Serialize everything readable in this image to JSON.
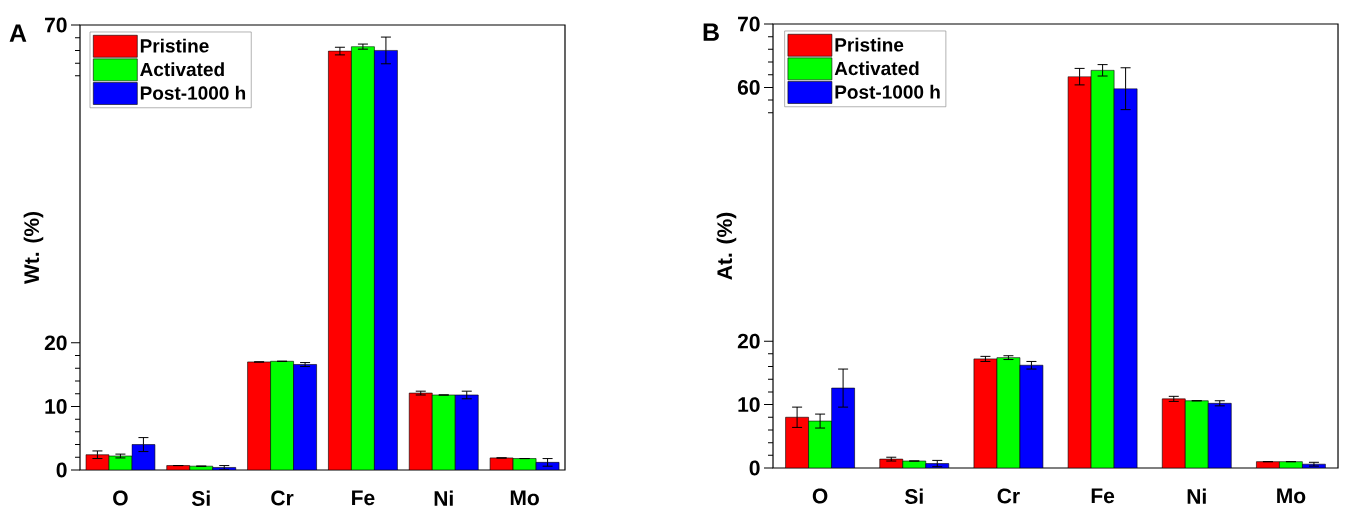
{
  "chart_data": [
    {
      "type": "bar",
      "title": "A",
      "ylabel": "Wt. (%)",
      "categories": [
        "O",
        "Si",
        "Cr",
        "Fe",
        "Ni",
        "Mo"
      ],
      "series": [
        {
          "name": "Pristine",
          "color": "#ff0000",
          "values": [
            2.4,
            0.7,
            17.0,
            65.9,
            12.1,
            1.9
          ],
          "errors": [
            0.6,
            null,
            null,
            0.6,
            0.3,
            null
          ]
        },
        {
          "name": "Activated",
          "color": "#00ff00",
          "values": [
            2.2,
            0.6,
            17.1,
            66.6,
            11.8,
            1.8
          ],
          "errors": [
            0.3,
            null,
            null,
            0.4,
            null,
            null
          ]
        },
        {
          "name": "Post-1000 h",
          "color": "#0000ff",
          "values": [
            4.0,
            0.4,
            16.6,
            66.0,
            11.8,
            1.2
          ],
          "errors": [
            1.1,
            0.3,
            0.3,
            2.1,
            0.6,
            0.6
          ]
        }
      ],
      "ylim": [
        0,
        70
      ],
      "yticks": [
        0,
        {
          "value": 2,
          "label": null
        },
        {
          "value": 4,
          "label": null
        },
        {
          "value": 6,
          "label": null
        },
        {
          "value": 8,
          "label": null
        },
        10,
        {
          "value": 12,
          "label": null
        },
        {
          "value": 14,
          "label": null
        },
        {
          "value": 16,
          "label": null
        },
        {
          "value": 18,
          "label": null
        },
        20,
        {
          "value": 62,
          "label": null
        },
        {
          "value": 64,
          "label": null
        },
        {
          "value": 66,
          "label": null
        },
        {
          "value": 68,
          "label": null
        },
        70
      ],
      "legend": "top left"
    },
    {
      "type": "bar",
      "title": "B",
      "ylabel": "At. (%)",
      "categories": [
        "O",
        "Si",
        "Cr",
        "Fe",
        "Ni",
        "Mo"
      ],
      "series": [
        {
          "name": "Pristine",
          "color": "#ff0000",
          "values": [
            8.0,
            1.4,
            17.2,
            61.7,
            10.9,
            1.0
          ],
          "errors": [
            1.6,
            0.3,
            0.4,
            1.3,
            0.4,
            null
          ]
        },
        {
          "name": "Activated",
          "color": "#00ff00",
          "values": [
            7.4,
            1.1,
            17.4,
            62.7,
            10.6,
            1.0
          ],
          "errors": [
            1.1,
            null,
            0.3,
            0.9,
            null,
            null
          ]
        },
        {
          "name": "Post-1000 h",
          "color": "#0000ff",
          "values": [
            12.6,
            0.7,
            16.2,
            59.8,
            10.2,
            0.6
          ],
          "errors": [
            3.0,
            0.5,
            0.6,
            3.3,
            0.4,
            0.3
          ]
        }
      ],
      "ylim": [
        0,
        70
      ],
      "yticks": [
        0,
        {
          "value": 2,
          "label": null
        },
        {
          "value": 4,
          "label": null
        },
        {
          "value": 6,
          "label": null
        },
        {
          "value": 8,
          "label": null
        },
        10,
        {
          "value": 12,
          "label": null
        },
        {
          "value": 14,
          "label": null
        },
        {
          "value": 16,
          "label": null
        },
        {
          "value": 18,
          "label": null
        },
        20,
        {
          "value": 56,
          "label": null
        },
        {
          "value": 58,
          "label": null
        },
        60,
        {
          "value": 62,
          "label": null
        },
        {
          "value": 64,
          "label": null
        },
        {
          "value": 66,
          "label": null
        },
        {
          "value": 68,
          "label": null
        },
        70
      ],
      "legend": "top left"
    }
  ]
}
